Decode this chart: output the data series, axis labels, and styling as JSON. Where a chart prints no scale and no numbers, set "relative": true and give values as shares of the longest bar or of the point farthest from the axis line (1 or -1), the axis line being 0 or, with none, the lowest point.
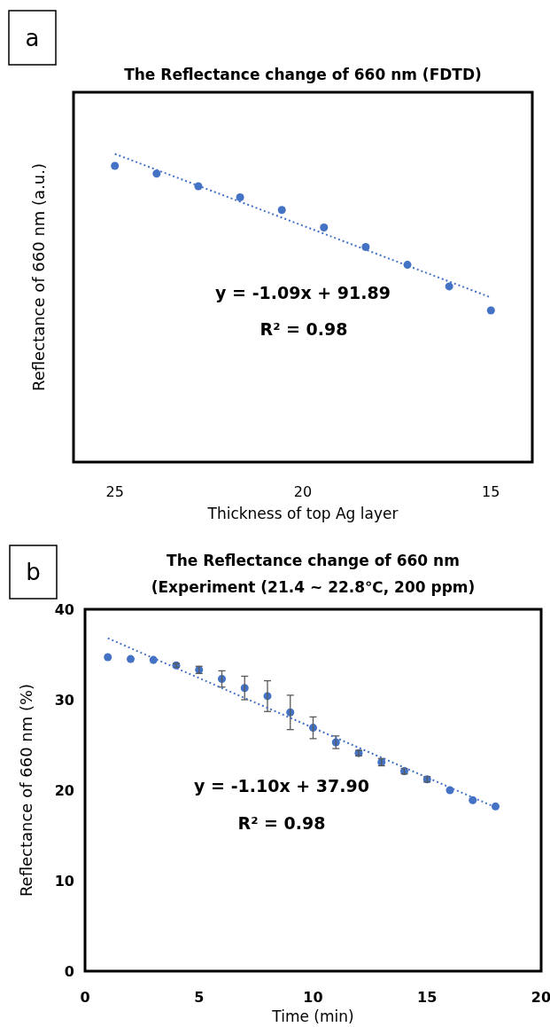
{
  "chart_data": [
    {
      "type": "scatter",
      "title": "The Reflectance change of 660 nm (FDTD)",
      "xlabel": "Thickness of top Ag layer",
      "ylabel": "Reflectance of 660 nm (a.u.)",
      "relative": true,
      "tick_labels": "x",
      "xlim": [
        26.1,
        13.9
      ],
      "xticks": [
        25,
        20,
        15
      ],
      "annotations": [
        "a",
        "y = -1.09x + 91.89",
        "R² = 0.98"
      ],
      "series": [
        {
          "type": "scatter",
          "marker": "circle",
          "color": "#4472c4",
          "x": [
            25,
            23.89,
            22.78,
            21.67,
            20.56,
            19.44,
            18.33,
            17.22,
            16.11,
            15
          ],
          "values": [
            0.961,
            0.936,
            0.895,
            0.859,
            0.818,
            0.761,
            0.698,
            0.64,
            0.57,
            0.492
          ]
        },
        {
          "type": "line",
          "marker": "none",
          "color": "#4472c4",
          "line_style": "dotted",
          "x": [
            25,
            15
          ],
          "values": [
            1,
            0.534
          ]
        }
      ]
    },
    {
      "type": "scatter",
      "title": "The Reflectance change of 660 nm",
      "subtitle": "(Experiment (21.4 ~ 22.8℃, 200 ppm)",
      "xlabel": "Time (min)",
      "ylabel": "Reflectance of 660 nm (%)",
      "xlim": [
        0,
        20
      ],
      "xticks": [
        0,
        5,
        10,
        15,
        20
      ],
      "ylim": [
        0,
        40
      ],
      "yticks": [
        0,
        10,
        20,
        30,
        40
      ],
      "annotations": [
        "b",
        "y = -1.10x + 37.90",
        "R² = 0.98"
      ],
      "series": [
        {
          "type": "scatter",
          "marker": "circle",
          "color": "#4472c4",
          "x": [
            1,
            2,
            3,
            4,
            5,
            6,
            7,
            8,
            9,
            10,
            11,
            12,
            13,
            14,
            15,
            16,
            17,
            18
          ],
          "values": [
            34.7,
            34.5,
            34.4,
            33.8,
            33.3,
            32.3,
            31.3,
            30.4,
            28.6,
            26.9,
            25.3,
            24.1,
            23.1,
            22.1,
            21.2,
            20.0,
            18.9,
            18.2
          ],
          "errors": [
            null,
            null,
            null,
            0.2,
            0.4,
            0.9,
            1.3,
            1.7,
            1.9,
            1.2,
            0.7,
            0.3,
            0.4,
            0.3,
            0.3,
            null,
            null,
            null
          ]
        },
        {
          "type": "line",
          "marker": "none",
          "color": "#4472c4",
          "line_style": "dotted",
          "x": [
            1,
            18
          ],
          "values": [
            36.8,
            18.1
          ]
        }
      ]
    }
  ]
}
